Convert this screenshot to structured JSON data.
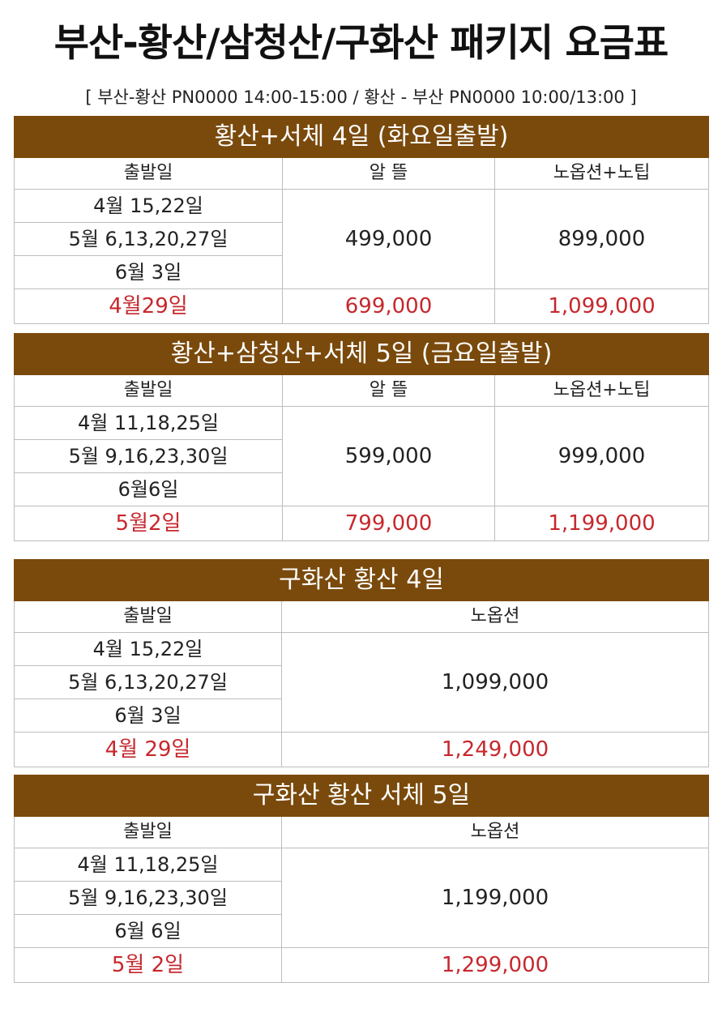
{
  "title": "부산-황산/삼청산/구화산 패키지 요금표",
  "flight_info": "[ 부산-황산 PN0000 14:00-15:00 / 황산 - 부산 PN0000 10:00/13:00 ]",
  "packages": [
    {
      "name": "황산+서체 4일 (화요일출발)",
      "headers": [
        "출발일",
        "알 뜰",
        "노옵션+노팁"
      ],
      "dates": [
        "4월 15,22일",
        "5월 6,13,20,27일",
        "6월 3일"
      ],
      "prices": [
        "499,000",
        "899,000"
      ],
      "special": {
        "date": "4월29일",
        "prices": [
          "699,000",
          "1,099,000"
        ]
      }
    },
    {
      "name": "황산+삼청산+서체 5일 (금요일출발)",
      "headers": [
        "출발일",
        "알 뜰",
        "노옵션+노팁"
      ],
      "dates": [
        "4월 11,18,25일",
        "5월 9,16,23,30일",
        "6월6일"
      ],
      "prices": [
        "599,000",
        "999,000"
      ],
      "special": {
        "date": "5월2일",
        "prices": [
          "799,000",
          "1,199,000"
        ]
      }
    },
    {
      "name": "구화산 황산 4일",
      "headers": [
        "출발일",
        "노옵션"
      ],
      "dates": [
        "4월 15,22일",
        "5월 6,13,20,27일",
        "6월 3일"
      ],
      "prices": [
        "1,099,000"
      ],
      "special": {
        "date": "4월 29일",
        "prices": [
          "1,249,000"
        ]
      }
    },
    {
      "name": "구화산 황산 서체 5일",
      "headers": [
        "출발일",
        "노옵션"
      ],
      "dates": [
        "4월 11,18,25일",
        "5월 9,16,23,30일",
        "6월 6일"
      ],
      "prices": [
        "1,199,000"
      ],
      "special": {
        "date": "5월 2일",
        "prices": [
          "1,299,000"
        ]
      }
    }
  ],
  "colors": {
    "banner": "#7a4a0c",
    "highlight": "#c6282d",
    "grid": "#bdbdbd"
  }
}
